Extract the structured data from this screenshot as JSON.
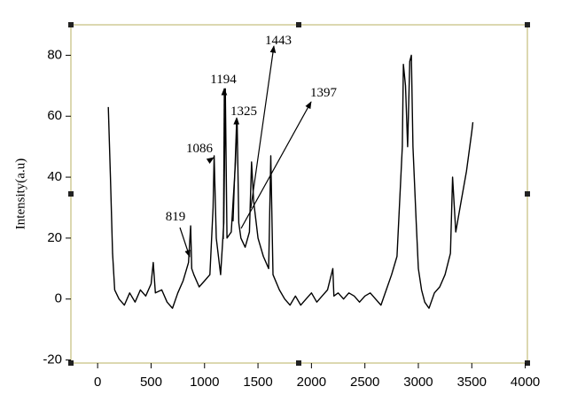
{
  "chart_data": {
    "type": "line",
    "y_label": "Intensity(a.u)",
    "color": "#000000",
    "x": [
      100,
      120,
      140,
      160,
      200,
      250,
      300,
      350,
      400,
      450,
      500,
      520,
      540,
      600,
      650,
      700,
      750,
      800,
      850,
      870,
      880,
      900,
      950,
      1000,
      1050,
      1080,
      1090,
      1110,
      1150,
      1180,
      1194,
      1210,
      1250,
      1290,
      1305,
      1320,
      1340,
      1380,
      1420,
      1440,
      1460,
      1500,
      1550,
      1600,
      1620,
      1640,
      1700,
      1750,
      1800,
      1850,
      1900,
      1950,
      2000,
      2050,
      2100,
      2150,
      2200,
      2210,
      2250,
      2300,
      2350,
      2400,
      2450,
      2500,
      2550,
      2600,
      2650,
      2700,
      2750,
      2800,
      2850,
      2860,
      2880,
      2900,
      2920,
      2935,
      2950,
      2980,
      3000,
      3030,
      3060,
      3100,
      3150,
      3200,
      3250,
      3300,
      3320,
      3350,
      3400,
      3450,
      3500,
      3510
    ],
    "values": [
      63,
      40,
      15,
      3,
      0,
      -2,
      2,
      -1,
      3,
      1,
      5,
      12,
      2,
      3,
      -1,
      -3,
      2,
      6,
      12,
      24,
      10,
      8,
      4,
      6,
      8,
      30,
      47,
      20,
      8,
      25,
      69,
      20,
      22,
      45,
      59,
      25,
      20,
      17,
      22,
      45,
      32,
      20,
      14,
      10,
      47,
      8,
      3,
      0,
      -2,
      1,
      -2,
      0,
      2,
      -1,
      1,
      3,
      10,
      1,
      2,
      0,
      2,
      1,
      -1,
      1,
      2,
      0,
      -2,
      3,
      8,
      14,
      50,
      77,
      70,
      50,
      78,
      80,
      50,
      25,
      10,
      3,
      -1,
      -3,
      2,
      4,
      8,
      15,
      40,
      22,
      32,
      42,
      55,
      58
    ],
    "xlim": [
      -250,
      4020
    ],
    "ylim": [
      -21,
      90
    ],
    "xticks": [
      0,
      500,
      1000,
      1500,
      2000,
      2500,
      3000,
      3500,
      4000
    ],
    "yticks": [
      -20,
      0,
      20,
      40,
      60,
      80
    ],
    "annotations": [
      "819",
      "1086",
      "1194",
      "1325",
      "1443",
      "1397"
    ]
  }
}
